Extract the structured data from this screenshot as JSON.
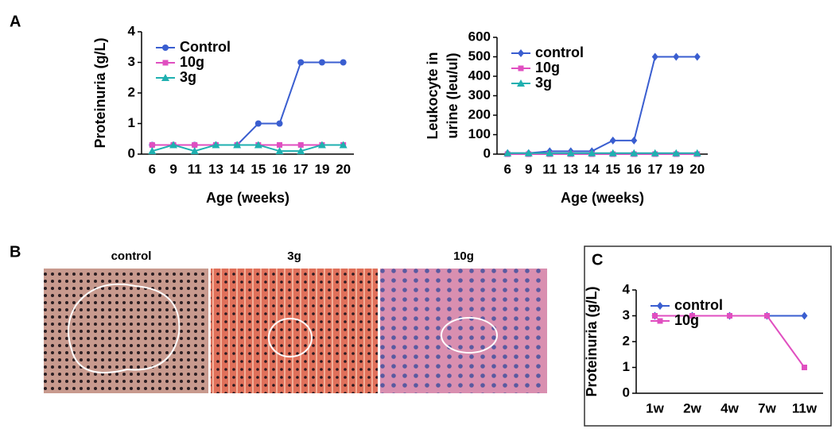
{
  "panels": [
    "A",
    "B",
    "C"
  ],
  "images": [
    "control",
    "3g",
    "10g"
  ],
  "chart_data": [
    {
      "type": "line",
      "ylabel": "Proteinuria (g/L)",
      "xlabel": "Age (weeks)",
      "categories": [
        "6",
        "9",
        "11",
        "13",
        "14",
        "15",
        "16",
        "17",
        "19",
        "20"
      ],
      "ylim": [
        0,
        4
      ],
      "yticks": [
        0,
        1,
        2,
        3,
        4
      ],
      "grid": false,
      "legend": "upper left",
      "series": [
        {
          "name": "Control",
          "color": "#3a5ed0",
          "marker": "circle",
          "values": [
            0.3,
            0.3,
            0.3,
            0.3,
            0.3,
            1,
            1,
            3,
            3,
            3
          ]
        },
        {
          "name": "10g",
          "color": "#e04fc0",
          "marker": "square",
          "values": [
            0.3,
            0.3,
            0.3,
            0.3,
            0.3,
            0.3,
            0.3,
            0.3,
            0.3,
            0.3
          ]
        },
        {
          "name": "3g",
          "color": "#1fb0b0",
          "marker": "triangle",
          "values": [
            0.1,
            0.3,
            0.1,
            0.3,
            0.3,
            0.3,
            0.1,
            0.1,
            0.3,
            0.3
          ]
        }
      ]
    },
    {
      "type": "line",
      "ylabel": [
        "Leukocyte in",
        "urine (leu/ul)"
      ],
      "xlabel": "Age (weeks)",
      "categories": [
        "6",
        "9",
        "11",
        "13",
        "14",
        "15",
        "16",
        "17",
        "19",
        "20"
      ],
      "ylim": [
        0,
        600
      ],
      "yticks": [
        0,
        100,
        200,
        300,
        400,
        500,
        600
      ],
      "grid": false,
      "legend": "upper left",
      "series": [
        {
          "name": "control",
          "color": "#3a5ed0",
          "marker": "diamond",
          "values": [
            5,
            5,
            15,
            15,
            15,
            70,
            70,
            500,
            500,
            500
          ]
        },
        {
          "name": "10g",
          "color": "#e04fc0",
          "marker": "square",
          "values": [
            0,
            0,
            0,
            0,
            0,
            0,
            0,
            0,
            0,
            0
          ]
        },
        {
          "name": "3g",
          "color": "#1fb0b0",
          "marker": "triangle",
          "values": [
            5,
            5,
            5,
            5,
            5,
            5,
            5,
            5,
            5,
            5
          ]
        }
      ]
    },
    {
      "type": "line",
      "ylabel": "Proteinuria (g/L)",
      "categories": [
        "1w",
        "2w",
        "4w",
        "7w",
        "11w"
      ],
      "ylim": [
        0,
        4
      ],
      "yticks": [
        0,
        1,
        2,
        3,
        4
      ],
      "grid": false,
      "legend": "upper left",
      "series": [
        {
          "name": "control",
          "color": "#3a5ed0",
          "marker": "diamond",
          "values": [
            3,
            3,
            3,
            3,
            3
          ]
        },
        {
          "name": "10g",
          "color": "#e04fc0",
          "marker": "square",
          "values": [
            3,
            3,
            3,
            3,
            1
          ]
        }
      ]
    }
  ]
}
